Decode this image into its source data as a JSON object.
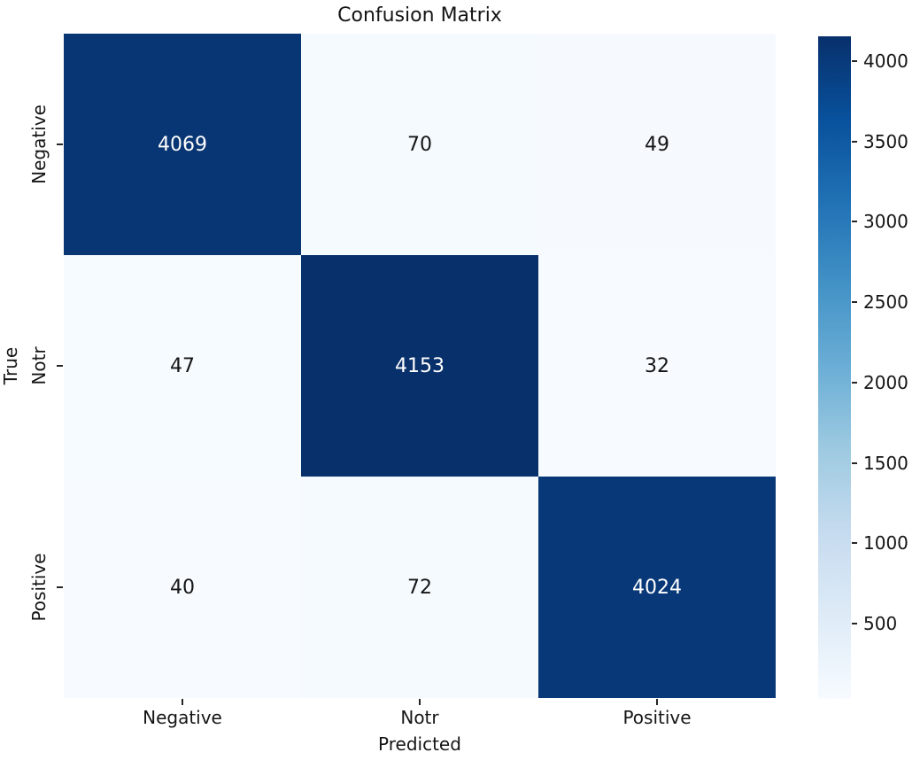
{
  "chart_data": {
    "type": "heatmap",
    "title": "Confusion Matrix",
    "xlabel": "Predicted",
    "ylabel": "True",
    "x_categories": [
      "Negative",
      "Notr",
      "Positive"
    ],
    "y_categories": [
      "Negative",
      "Notr",
      "Positive"
    ],
    "values": [
      [
        4069,
        70,
        49
      ],
      [
        47,
        4153,
        32
      ],
      [
        40,
        72,
        4024
      ]
    ],
    "vmin": 32,
    "vmax": 4153,
    "colormap_name": "Blues",
    "colormap_stops": [
      "#f7fbff",
      "#deebf7",
      "#c6dbef",
      "#9ecae1",
      "#6baed6",
      "#4292c6",
      "#2171b5",
      "#08519c",
      "#08306b"
    ],
    "colorbar_ticks": [
      500,
      1000,
      1500,
      2000,
      2500,
      3000,
      3500,
      4000
    ],
    "annot_color_on_dark": "#ffffff",
    "annot_color_on_light": "#151515",
    "legend_position": "right-colorbar",
    "grid": false
  }
}
